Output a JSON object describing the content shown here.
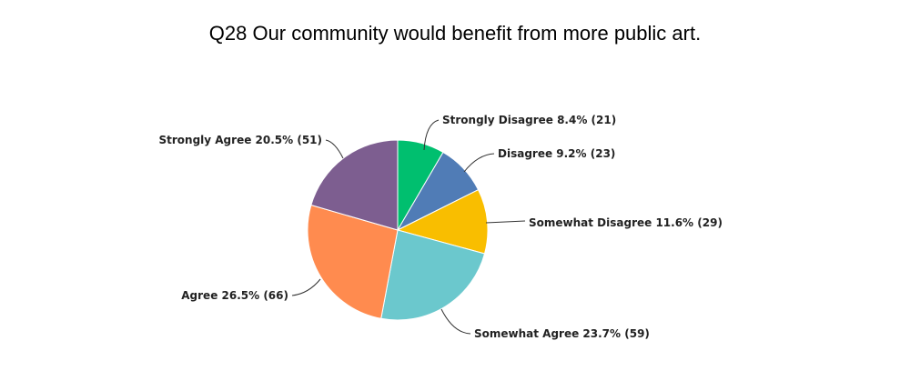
{
  "chart_data": {
    "type": "pie",
    "title": "Q28 Our community would benefit from more public art.",
    "start_angle_deg": 0,
    "direction": "clockwise",
    "slices": [
      {
        "name": "Strongly Disagree",
        "percent": 8.4,
        "count": 21,
        "color": "#00BF6F",
        "label": "Strongly Disagree 8.4% (21)"
      },
      {
        "name": "Disagree",
        "percent": 9.2,
        "count": 23,
        "color": "#507CB6",
        "label": "Disagree 9.2% (23)"
      },
      {
        "name": "Somewhat Disagree",
        "percent": 11.6,
        "count": 29,
        "color": "#F9BE00",
        "label": "Somewhat Disagree 11.6% (29)"
      },
      {
        "name": "Somewhat Agree",
        "percent": 23.7,
        "count": 59,
        "color": "#6BC8CD",
        "label": "Somewhat Agree 23.7% (59)"
      },
      {
        "name": "Agree",
        "percent": 26.5,
        "count": 66,
        "color": "#FF8B4F",
        "label": "Agree 26.5% (66)"
      },
      {
        "name": "Strongly Agree",
        "percent": 20.5,
        "count": 51,
        "color": "#7D5E90",
        "label": "Strongly Agree 20.5% (51)"
      }
    ]
  }
}
